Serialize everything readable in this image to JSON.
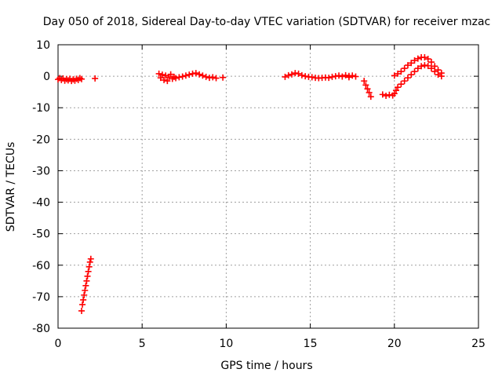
{
  "chart_data": {
    "type": "scatter",
    "title": "Day 050 of 2018, Sidereal Day-to-day VTEC variation (SDTVAR) for receiver mzac",
    "xlabel": "GPS time / hours",
    "ylabel": "SDTVAR / TECUs",
    "xlim": [
      0,
      25
    ],
    "ylim": [
      -80,
      10
    ],
    "xticks": [
      0,
      5,
      10,
      15,
      20,
      25
    ],
    "yticks": [
      10,
      0,
      -10,
      -20,
      -30,
      -40,
      -50,
      -60,
      -70,
      -80
    ],
    "grid": true,
    "marker": "+",
    "color": "#ff0000",
    "series": [
      {
        "name": "SDTVAR",
        "points": [
          [
            0.0,
            -1.0
          ],
          [
            0.1,
            -0.6
          ],
          [
            0.2,
            -1.2
          ],
          [
            0.3,
            -0.7
          ],
          [
            0.4,
            -1.4
          ],
          [
            0.5,
            -0.9
          ],
          [
            0.6,
            -1.3
          ],
          [
            0.7,
            -0.8
          ],
          [
            0.8,
            -1.5
          ],
          [
            0.9,
            -1.0
          ],
          [
            1.0,
            -1.4
          ],
          [
            1.1,
            -0.8
          ],
          [
            1.2,
            -1.2
          ],
          [
            1.3,
            -0.6
          ],
          [
            1.4,
            -0.9
          ],
          [
            2.2,
            -0.7
          ],
          [
            1.4,
            -74.5
          ],
          [
            1.45,
            -72.5
          ],
          [
            1.5,
            -71.0
          ],
          [
            1.55,
            -69.5
          ],
          [
            1.6,
            -68.0
          ],
          [
            1.65,
            -66.5
          ],
          [
            1.7,
            -65.0
          ],
          [
            1.75,
            -63.5
          ],
          [
            1.8,
            -62.0
          ],
          [
            1.85,
            -60.5
          ],
          [
            1.9,
            -59.0
          ],
          [
            1.95,
            -58.0
          ],
          [
            6.0,
            0.8
          ],
          [
            6.1,
            -0.5
          ],
          [
            6.2,
            0.5
          ],
          [
            6.3,
            -1.2
          ],
          [
            6.4,
            0.2
          ],
          [
            6.5,
            -1.5
          ],
          [
            6.6,
            -0.3
          ],
          [
            6.7,
            0.6
          ],
          [
            6.8,
            -0.8
          ],
          [
            6.9,
            -0.2
          ],
          [
            7.0,
            -0.6
          ],
          [
            7.2,
            -0.3
          ],
          [
            7.4,
            -0.1
          ],
          [
            7.6,
            0.2
          ],
          [
            7.8,
            0.5
          ],
          [
            8.0,
            0.8
          ],
          [
            8.2,
            1.0
          ],
          [
            8.4,
            0.6
          ],
          [
            8.6,
            0.2
          ],
          [
            8.8,
            -0.2
          ],
          [
            9.0,
            -0.5
          ],
          [
            9.2,
            -0.3
          ],
          [
            9.4,
            -0.6
          ],
          [
            9.8,
            -0.4
          ],
          [
            13.5,
            -0.2
          ],
          [
            13.7,
            0.3
          ],
          [
            13.9,
            0.6
          ],
          [
            14.1,
            1.0
          ],
          [
            14.3,
            0.8
          ],
          [
            14.5,
            0.3
          ],
          [
            14.7,
            0.0
          ],
          [
            14.9,
            -0.2
          ],
          [
            15.1,
            -0.3
          ],
          [
            15.3,
            -0.5
          ],
          [
            15.5,
            -0.6
          ],
          [
            15.7,
            -0.5
          ],
          [
            15.9,
            -0.4
          ],
          [
            16.1,
            -0.5
          ],
          [
            16.3,
            -0.2
          ],
          [
            16.5,
            0.0
          ],
          [
            16.7,
            0.2
          ],
          [
            16.9,
            -0.1
          ],
          [
            17.1,
            0.3
          ],
          [
            17.3,
            0.1
          ],
          [
            17.3,
            -0.3
          ],
          [
            17.5,
            0.2
          ],
          [
            17.7,
            -0.1
          ],
          [
            18.2,
            -1.5
          ],
          [
            18.3,
            -2.8
          ],
          [
            18.4,
            -4.0
          ],
          [
            18.5,
            -5.2
          ],
          [
            18.6,
            -6.5
          ],
          [
            19.3,
            -5.8
          ],
          [
            19.5,
            -6.2
          ],
          [
            19.7,
            -5.9
          ],
          [
            19.9,
            -6.1
          ],
          [
            20.0,
            -5.5
          ],
          [
            20.1,
            -4.5
          ],
          [
            20.2,
            -3.5
          ],
          [
            20.4,
            -2.5
          ],
          [
            20.6,
            -1.5
          ],
          [
            20.8,
            -0.5
          ],
          [
            21.0,
            0.5
          ],
          [
            21.2,
            1.5
          ],
          [
            21.4,
            2.5
          ],
          [
            21.6,
            3.2
          ],
          [
            21.8,
            3.5
          ],
          [
            22.0,
            3.3
          ],
          [
            22.2,
            2.5
          ],
          [
            22.4,
            1.5
          ],
          [
            22.6,
            0.5
          ],
          [
            22.8,
            0.0
          ],
          [
            20.0,
            0.2
          ],
          [
            20.2,
            0.8
          ],
          [
            20.4,
            1.5
          ],
          [
            20.6,
            2.5
          ],
          [
            20.8,
            3.5
          ],
          [
            21.0,
            4.2
          ],
          [
            21.2,
            5.0
          ],
          [
            21.4,
            5.6
          ],
          [
            21.6,
            6.0
          ],
          [
            21.8,
            6.0
          ],
          [
            22.0,
            5.5
          ],
          [
            22.2,
            4.5
          ],
          [
            22.4,
            3.2
          ],
          [
            22.6,
            2.0
          ],
          [
            22.8,
            1.0
          ]
        ]
      }
    ]
  }
}
